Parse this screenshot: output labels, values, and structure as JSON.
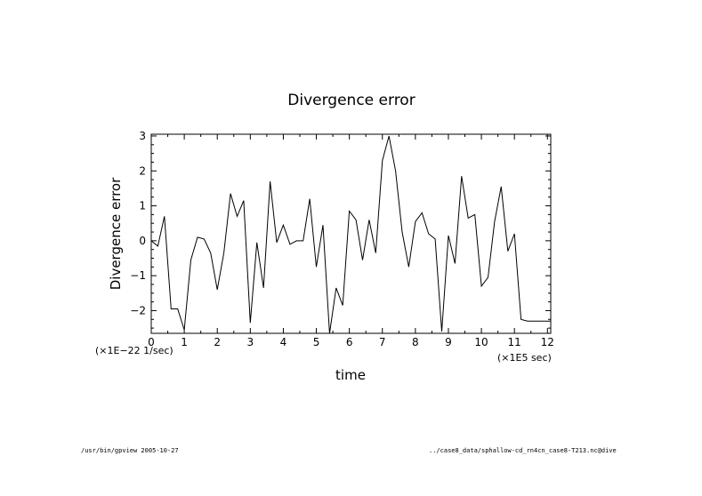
{
  "chart_data": {
    "type": "line",
    "title": "Divergence error",
    "xlabel": "time",
    "ylabel": "Divergence error",
    "x_scale_label": "(×1E5 sec)",
    "y_scale_label": "(×1E−22 1/sec)",
    "xlim": [
      0,
      12.1
    ],
    "ylim": [
      -2.65,
      3.05
    ],
    "x_ticks": [
      "0",
      "1",
      "2",
      "3",
      "4",
      "5",
      "6",
      "7",
      "8",
      "9",
      "10",
      "11",
      "12"
    ],
    "y_ticks": [
      "−2",
      "−1",
      "0",
      "1",
      "2",
      "3"
    ],
    "grid": false,
    "series": [
      {
        "x": [
          0,
          0.2,
          0.4,
          0.6,
          0.8,
          1.0,
          1.2,
          1.4,
          1.6,
          1.8,
          2.0,
          2.2,
          2.4,
          2.6,
          2.8,
          3.0,
          3.2,
          3.4,
          3.6,
          3.8,
          4.0,
          4.2,
          4.4,
          4.6,
          4.8,
          5.0,
          5.2,
          5.4,
          5.6,
          5.8,
          6.0,
          6.2,
          6.4,
          6.6,
          6.8,
          7.0,
          7.2,
          7.4,
          7.6,
          7.8,
          8.0,
          8.2,
          8.4,
          8.6,
          8.8,
          9.0,
          9.2,
          9.4,
          9.6,
          9.8,
          10.0,
          10.2,
          10.4,
          10.6,
          10.8,
          11.0,
          11.2,
          11.4,
          11.6,
          11.8,
          12.0,
          12.1
        ],
        "values": [
          0.0,
          -0.15,
          0.7,
          -1.95,
          -1.95,
          -2.55,
          -0.55,
          0.1,
          0.05,
          -0.35,
          -1.4,
          -0.35,
          1.35,
          0.7,
          1.15,
          -2.35,
          -0.05,
          -1.35,
          1.7,
          -0.05,
          0.45,
          -0.1,
          0.0,
          0.0,
          1.2,
          -0.75,
          0.45,
          -2.65,
          -1.35,
          -1.85,
          0.85,
          0.6,
          -0.55,
          0.6,
          -0.35,
          2.3,
          3.0,
          2.0,
          0.25,
          -0.75,
          0.55,
          0.8,
          0.2,
          0.05,
          -2.6,
          0.15,
          -0.65,
          1.85,
          0.65,
          0.75,
          -1.3,
          -1.05,
          0.55,
          1.55,
          -0.3,
          0.2,
          -2.25,
          -2.3,
          -2.3,
          -2.3,
          -2.3,
          -2.3
        ]
      }
    ]
  },
  "footer": {
    "left": "/usr/bin/gpview  2005-10-27",
    "right": "../case8_data/sphallow-cd_rn4cn_case8-T213.nc@dive"
  }
}
